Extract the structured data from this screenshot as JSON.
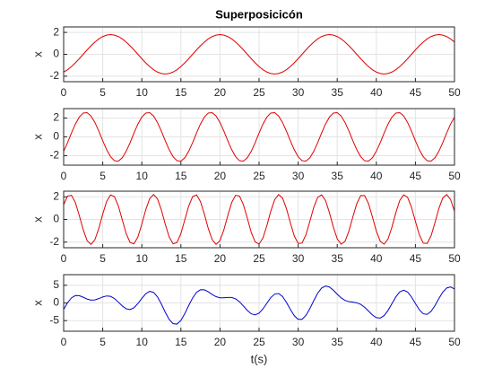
{
  "chart_data": [
    {
      "type": "line",
      "title": "Superposicicón",
      "y_label": "x",
      "color": "#e00000",
      "grid": true,
      "xlim": [
        0,
        50
      ],
      "xticks": [
        0,
        5,
        10,
        15,
        20,
        25,
        30,
        35,
        40,
        45,
        50
      ],
      "ylim": [
        -2.5,
        2.5
      ],
      "yticks": [
        -2,
        0,
        2
      ],
      "x": [
        0,
        0.5,
        1,
        1.5,
        2,
        2.5,
        3,
        3.5,
        4,
        4.5,
        5,
        5.5,
        6,
        6.5,
        7,
        7.5,
        8,
        8.5,
        9,
        9.5,
        10,
        10.5,
        11,
        11.5,
        12,
        12.5,
        13,
        13.5,
        14,
        14.5,
        15,
        15.5,
        16,
        16.5,
        17,
        17.5,
        18,
        18.5,
        19,
        19.5,
        20,
        20.5,
        21,
        21.5,
        22,
        22.5,
        23,
        23.5,
        24,
        24.5,
        25,
        25.5,
        26,
        26.5,
        27,
        27.5,
        28,
        28.5,
        29,
        29.5,
        30,
        30.5,
        31,
        31.5,
        32,
        32.5,
        33,
        33.5,
        34,
        34.5,
        35,
        35.5,
        36,
        36.5,
        37,
        37.5,
        38,
        38.5,
        39,
        39.5,
        40,
        40.5,
        41,
        41.5,
        42,
        42.5,
        43,
        43.5,
        44,
        44.5,
        45,
        45.5,
        46,
        46.5,
        47,
        47.5,
        48,
        48.5,
        49,
        49.5,
        50
      ],
      "values": [
        -1.62,
        -1.41,
        -1.12,
        -0.78,
        -0.4,
        0,
        0.4,
        0.78,
        1.12,
        1.41,
        1.62,
        1.75,
        1.8,
        1.75,
        1.62,
        1.41,
        1.12,
        0.78,
        0.4,
        0,
        -0.4,
        -0.78,
        -1.12,
        -1.41,
        -1.62,
        -1.75,
        -1.8,
        -1.75,
        -1.62,
        -1.41,
        -1.12,
        -0.78,
        -0.4,
        0,
        0.4,
        0.78,
        1.12,
        1.41,
        1.62,
        1.75,
        1.8,
        1.75,
        1.62,
        1.41,
        1.12,
        0.78,
        0.4,
        0,
        -0.4,
        -0.78,
        -1.12,
        -1.41,
        -1.62,
        -1.75,
        -1.8,
        -1.75,
        -1.62,
        -1.41,
        -1.12,
        -0.78,
        -0.4,
        0,
        0.4,
        0.78,
        1.12,
        1.41,
        1.62,
        1.75,
        1.8,
        1.75,
        1.62,
        1.41,
        1.12,
        0.78,
        0.4,
        0,
        -0.4,
        -0.78,
        -1.12,
        -1.41,
        -1.62,
        -1.75,
        -1.8,
        -1.75,
        -1.62,
        -1.41,
        -1.12,
        -0.78,
        -0.4,
        0,
        0.4,
        0.78,
        1.12,
        1.41,
        1.62,
        1.75,
        1.8,
        1.75,
        1.62,
        1.41,
        1.12
      ]
    },
    {
      "type": "line",
      "y_label": "x",
      "color": "#e00000",
      "grid": true,
      "xlim": [
        0,
        50
      ],
      "xticks": [
        0,
        5,
        10,
        15,
        20,
        25,
        30,
        35,
        40,
        45,
        50
      ],
      "ylim": [
        -3,
        3
      ],
      "yticks": [
        -2,
        0,
        2
      ],
      "x": [
        0,
        0.5,
        1,
        1.5,
        2,
        2.5,
        3,
        3.5,
        4,
        4.5,
        5,
        5.5,
        6,
        6.5,
        7,
        7.5,
        8,
        8.5,
        9,
        9.5,
        10,
        10.5,
        11,
        11.5,
        12,
        12.5,
        13,
        13.5,
        14,
        14.5,
        15,
        15.5,
        16,
        16.5,
        17,
        17.5,
        18,
        18.5,
        19,
        19.5,
        20,
        20.5,
        21,
        21.5,
        22,
        22.5,
        23,
        23.5,
        24,
        24.5,
        25,
        25.5,
        26,
        26.5,
        27,
        27.5,
        28,
        28.5,
        29,
        29.5,
        30,
        30.5,
        31,
        31.5,
        32,
        32.5,
        33,
        33.5,
        34,
        34.5,
        35,
        35.5,
        36,
        36.5,
        37,
        37.5,
        38,
        38.5,
        39,
        39.5,
        40,
        40.5,
        41,
        41.5,
        42,
        42.5,
        43,
        43.5,
        44,
        44.5,
        45,
        45.5,
        46,
        46.5,
        47,
        47.5,
        48,
        48.5,
        49,
        49.5,
        50
      ],
      "values": [
        -1.53,
        -0.61,
        0.41,
        1.36,
        2.1,
        2.53,
        2.57,
        2.22,
        1.53,
        0.61,
        -0.41,
        -1.36,
        -2.1,
        -2.53,
        -2.57,
        -2.22,
        -1.53,
        -0.61,
        0.41,
        1.36,
        2.1,
        2.53,
        2.57,
        2.22,
        1.53,
        0.61,
        -0.41,
        -1.36,
        -2.1,
        -2.53,
        -2.57,
        -2.22,
        -1.53,
        -0.61,
        0.41,
        1.36,
        2.1,
        2.53,
        2.57,
        2.22,
        1.53,
        0.61,
        -0.41,
        -1.36,
        -2.1,
        -2.53,
        -2.57,
        -2.22,
        -1.53,
        -0.61,
        0.41,
        1.36,
        2.1,
        2.53,
        2.57,
        2.22,
        1.53,
        0.61,
        -0.41,
        -1.36,
        -2.1,
        -2.53,
        -2.57,
        -2.22,
        -1.53,
        -0.61,
        0.41,
        1.36,
        2.1,
        2.53,
        2.57,
        2.22,
        1.53,
        0.61,
        -0.41,
        -1.36,
        -2.1,
        -2.53,
        -2.57,
        -2.22,
        -1.53,
        -0.61,
        0.41,
        1.36,
        2.1,
        2.53,
        2.57,
        2.22,
        1.53,
        0.61,
        -0.41,
        -1.36,
        -2.1,
        -2.53,
        -2.57,
        -2.22,
        -1.53,
        -0.61,
        0.41,
        1.36,
        2.1
      ]
    },
    {
      "type": "line",
      "y_label": "x",
      "color": "#e00000",
      "grid": true,
      "xlim": [
        0,
        50
      ],
      "xticks": [
        0,
        5,
        10,
        15,
        20,
        25,
        30,
        35,
        40,
        45,
        50
      ],
      "ylim": [
        -2.5,
        2.5
      ],
      "yticks": [
        -2,
        0,
        2
      ],
      "x": [
        0,
        0.5,
        1,
        1.5,
        2,
        2.5,
        3,
        3.5,
        4,
        4.5,
        5,
        5.5,
        6,
        6.5,
        7,
        7.5,
        8,
        8.5,
        9,
        9.5,
        10,
        10.5,
        11,
        11.5,
        12,
        12.5,
        13,
        13.5,
        14,
        14.5,
        15,
        15.5,
        16,
        16.5,
        17,
        17.5,
        18,
        18.5,
        19,
        19.5,
        20,
        20.5,
        21,
        21.5,
        22,
        22.5,
        23,
        23.5,
        24,
        24.5,
        25,
        25.5,
        26,
        26.5,
        27,
        27.5,
        28,
        28.5,
        29,
        29.5,
        30,
        30.5,
        31,
        31.5,
        32,
        32.5,
        33,
        33.5,
        34,
        34.5,
        35,
        35.5,
        36,
        36.5,
        37,
        37.5,
        38,
        38.5,
        39,
        39.5,
        40,
        40.5,
        41,
        41.5,
        42,
        42.5,
        43,
        43.5,
        44,
        44.5,
        45,
        45.5,
        46,
        46.5,
        47,
        47.5,
        48,
        48.5,
        49,
        49.5,
        50
      ],
      "values": [
        1.3,
        2.07,
        2.14,
        1.5,
        0.35,
        -0.91,
        -1.87,
        -2.2,
        -1.79,
        -0.79,
        0.48,
        1.59,
        2.17,
        2.02,
        1.19,
        -0.03,
        -1.25,
        -2.04,
        -2.15,
        -1.54,
        -0.42,
        0.85,
        1.83,
        2.2,
        1.83,
        0.85,
        -0.42,
        -1.54,
        -2.15,
        -2.04,
        -1.25,
        -0.03,
        1.19,
        2.02,
        2.17,
        1.59,
        0.48,
        -0.79,
        -1.79,
        -2.2,
        -1.87,
        -0.91,
        0.35,
        1.5,
        2.14,
        2.07,
        1.3,
        0.1,
        -1.14,
        -1.99,
        -2.18,
        -1.63,
        -0.54,
        0.73,
        1.76,
        2.2,
        1.9,
        0.97,
        -0.29,
        -1.45,
        -2.12,
        -2.09,
        -1.35,
        -0.16,
        1.08,
        1.96,
        2.18,
        1.68,
        0.61,
        -0.67,
        -1.72,
        -2.19,
        -1.93,
        -1.02,
        0.23,
        1.4,
        2.11,
        2.11,
        1.4,
        0.23,
        -1.02,
        -1.93,
        -2.19,
        -1.72,
        -0.67,
        0.61,
        1.68,
        2.18,
        1.96,
        1.08,
        -0.16,
        -1.35,
        -2.09,
        -2.12,
        -1.45,
        -0.29,
        0.97,
        1.9,
        2.2,
        1.76,
        0.73
      ]
    },
    {
      "type": "line",
      "y_label": "x",
      "x_label": "t(s)",
      "color": "#0000d0",
      "grid": true,
      "xlim": [
        0,
        50
      ],
      "xticks": [
        0,
        5,
        10,
        15,
        20,
        25,
        30,
        35,
        40,
        45,
        50
      ],
      "ylim": [
        -8,
        8
      ],
      "yticks": [
        -5,
        0,
        5
      ],
      "x": [
        0,
        0.5,
        1,
        1.5,
        2,
        2.5,
        3,
        3.5,
        4,
        4.5,
        5,
        5.5,
        6,
        6.5,
        7,
        7.5,
        8,
        8.5,
        9,
        9.5,
        10,
        10.5,
        11,
        11.5,
        12,
        12.5,
        13,
        13.5,
        14,
        14.5,
        15,
        15.5,
        16,
        16.5,
        17,
        17.5,
        18,
        18.5,
        19,
        19.5,
        20,
        20.5,
        21,
        21.5,
        22,
        22.5,
        23,
        23.5,
        24,
        24.5,
        25,
        25.5,
        26,
        26.5,
        27,
        27.5,
        28,
        28.5,
        29,
        29.5,
        30,
        30.5,
        31,
        31.5,
        32,
        32.5,
        33,
        33.5,
        34,
        34.5,
        35,
        35.5,
        36,
        36.5,
        37,
        37.5,
        38,
        38.5,
        39,
        39.5,
        40,
        40.5,
        41,
        41.5,
        42,
        42.5,
        43,
        43.5,
        44,
        44.5,
        45,
        45.5,
        46,
        46.5,
        47,
        47.5,
        48,
        48.5,
        49,
        49.5,
        50
      ],
      "values": [
        -1.85,
        0.05,
        1.43,
        2.08,
        2.05,
        1.62,
        1.1,
        0.8,
        0.86,
        1.23,
        1.69,
        1.98,
        1.87,
        1.24,
        0.24,
        -0.84,
        -1.66,
        -1.87,
        -1.34,
        -0.18,
        1.28,
        2.6,
        3.28,
        3.01,
        1.74,
        -0.29,
        -2.63,
        -4.65,
        -5.87,
        -5.98,
        -4.94,
        -3.03,
        -0.74,
        1.41,
        2.98,
        3.73,
        3.7,
        3.15,
        2.4,
        1.77,
        1.46,
        1.45,
        1.56,
        1.55,
        1.16,
        0.32,
        -0.87,
        -2.12,
        -3.07,
        -3.38,
        -2.89,
        -1.68,
        -0.06,
        1.51,
        2.53,
        2.67,
        1.81,
        0.17,
        -1.82,
        -3.59,
        -4.62,
        -4.62,
        -3.52,
        -1.6,
        0.67,
        2.76,
        4.21,
        4.79,
        4.51,
        3.61,
        2.47,
        1.44,
        0.72,
        0.37,
        0.22,
        0.04,
        -0.39,
        -1.2,
        -2.29,
        -3.4,
        -4.17,
        -4.29,
        -3.58,
        -2.11,
        -0.19,
        1.73,
        3.13,
        3.62,
        3.09,
        1.69,
        -0.17,
        -1.93,
        -3.07,
        -3.24,
        -2.4,
        -0.76,
        1.24,
        3.04,
        4.23,
        4.53,
        3.95
      ]
    }
  ]
}
